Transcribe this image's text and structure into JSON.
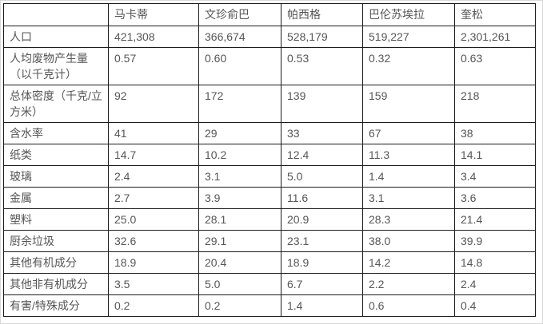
{
  "table": {
    "columns": [
      "",
      "马卡蒂",
      "文珍俞巴",
      "帕西格",
      "巴伦苏埃拉",
      "奎松"
    ],
    "rows": [
      {
        "label": "人口",
        "values": [
          "421,308",
          "366,674",
          "528,179",
          "519,227",
          "2,301,261"
        ]
      },
      {
        "label": "人均废物产生量（以千克计）",
        "values": [
          "0.57",
          "0.60",
          "0.53",
          "0.32",
          "0.63"
        ]
      },
      {
        "label": "总体密度（千克/立方米）",
        "values": [
          "92",
          "172",
          "139",
          "159",
          "218"
        ]
      },
      {
        "label": "含水率",
        "values": [
          "41",
          "29",
          "33",
          "67",
          "38"
        ]
      },
      {
        "label": "纸类",
        "values": [
          "14.7",
          "10.2",
          "12.4",
          "11.3",
          "14.1"
        ]
      },
      {
        "label": "玻璃",
        "values": [
          "2.4",
          "3.1",
          "5.0",
          "1.4",
          "3.4"
        ]
      },
      {
        "label": "金属",
        "values": [
          "2.7",
          "3.9",
          "11.6",
          "3.1",
          "3.6"
        ]
      },
      {
        "label": "塑料",
        "values": [
          "25.0",
          "28.1",
          "20.9",
          "28.3",
          "21.4"
        ]
      },
      {
        "label": "厨余垃圾",
        "values": [
          "32.6",
          "29.1",
          "23.1",
          "38.0",
          "39.9"
        ]
      },
      {
        "label": "其他有机成分",
        "values": [
          "18.9",
          "20.4",
          "18.9",
          "14.2",
          "14.8"
        ]
      },
      {
        "label": "其他非有机成分",
        "values": [
          "3.5",
          "5.0",
          "6.7",
          "2.2",
          "2.4"
        ]
      },
      {
        "label": "有害/特殊成分",
        "values": [
          "0.2",
          "0.2",
          "1.4",
          "0.6",
          "0.4"
        ]
      }
    ],
    "colors": {
      "border": "#1c1c1c",
      "text": "#565656",
      "background": "#ffffff",
      "page_edge": "#d9d9d9"
    }
  }
}
